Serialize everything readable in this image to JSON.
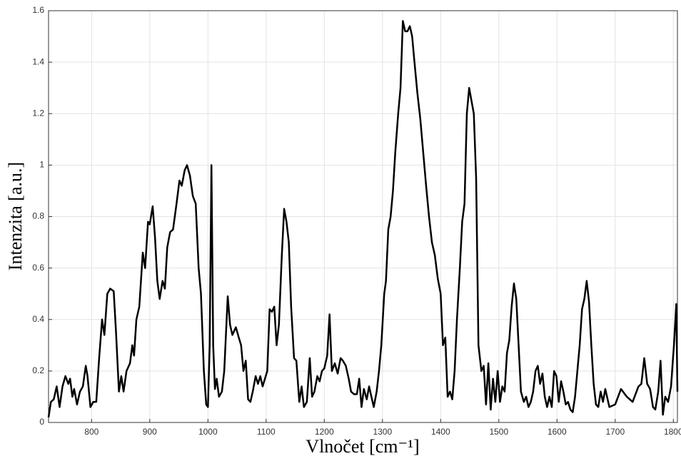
{
  "chart_data": {
    "type": "line",
    "xlabel": "Vlnočet [cm⁻¹]",
    "ylabel": "Intenzita [a.u.]",
    "color": "#000000",
    "grid": true,
    "xlim": [
      726,
      1807
    ],
    "ylim": [
      0,
      1.6
    ],
    "xticks": [
      800,
      900,
      1000,
      1100,
      1200,
      1300,
      1400,
      1500,
      1600,
      1700,
      1800
    ],
    "yticks": [
      0,
      0.2,
      0.4,
      0.6,
      0.8,
      1,
      1.2,
      1.4,
      1.6
    ],
    "x": [
      726,
      730,
      735,
      740,
      745,
      750,
      755,
      760,
      763,
      767,
      770,
      775,
      780,
      785,
      790,
      793,
      798,
      803,
      808,
      813,
      818,
      822,
      827,
      832,
      838,
      842,
      847,
      851,
      855,
      860,
      866,
      870,
      873,
      877,
      882,
      888,
      892,
      897,
      900,
      905,
      909,
      913,
      917,
      922,
      926,
      930,
      935,
      940,
      946,
      951,
      955,
      960,
      964,
      969,
      974,
      979,
      984,
      988,
      993,
      997,
      1000,
      1003,
      1006,
      1009,
      1012,
      1015,
      1019,
      1024,
      1028,
      1034,
      1038,
      1042,
      1048,
      1053,
      1057,
      1061,
      1065,
      1069,
      1073,
      1077,
      1082,
      1086,
      1090,
      1094,
      1098,
      1102,
      1106,
      1110,
      1114,
      1118,
      1122,
      1127,
      1131,
      1135,
      1139,
      1143,
      1148,
      1152,
      1157,
      1161,
      1165,
      1170,
      1175,
      1179,
      1183,
      1188,
      1192,
      1196,
      1200,
      1205,
      1209,
      1213,
      1218,
      1223,
      1228,
      1232,
      1237,
      1242,
      1246,
      1251,
      1256,
      1260,
      1264,
      1268,
      1273,
      1277,
      1281,
      1285,
      1290,
      1294,
      1298,
      1303,
      1306,
      1310,
      1314,
      1318,
      1322,
      1327,
      1331,
      1335,
      1339,
      1343,
      1347,
      1351,
      1355,
      1360,
      1365,
      1370,
      1375,
      1380,
      1385,
      1390,
      1395,
      1400,
      1404,
      1408,
      1412,
      1416,
      1420,
      1424,
      1428,
      1433,
      1437,
      1441,
      1445,
      1449,
      1453,
      1457,
      1461,
      1465,
      1470,
      1474,
      1478,
      1482,
      1486,
      1490,
      1494,
      1498,
      1502,
      1506,
      1510,
      1514,
      1518,
      1522,
      1526,
      1530,
      1534,
      1538,
      1543,
      1547,
      1551,
      1555,
      1559,
      1563,
      1567,
      1571,
      1575,
      1579,
      1583,
      1587,
      1591,
      1595,
      1599,
      1603,
      1607,
      1611,
      1615,
      1619,
      1623,
      1627,
      1631,
      1635,
      1639,
      1643,
      1647,
      1651,
      1655,
      1659,
      1663,
      1667,
      1671,
      1675,
      1679,
      1683,
      1690,
      1700,
      1710,
      1720,
      1730,
      1740,
      1745,
      1750,
      1755,
      1760,
      1765,
      1769,
      1774,
      1778,
      1782,
      1786,
      1791,
      1796,
      1801,
      1805,
      1807
    ],
    "values": [
      0.02,
      0.08,
      0.09,
      0.14,
      0.06,
      0.14,
      0.18,
      0.15,
      0.17,
      0.1,
      0.13,
      0.07,
      0.12,
      0.14,
      0.22,
      0.18,
      0.06,
      0.08,
      0.08,
      0.25,
      0.4,
      0.34,
      0.5,
      0.52,
      0.51,
      0.35,
      0.12,
      0.18,
      0.12,
      0.2,
      0.23,
      0.3,
      0.26,
      0.4,
      0.45,
      0.66,
      0.6,
      0.78,
      0.77,
      0.84,
      0.72,
      0.55,
      0.48,
      0.55,
      0.52,
      0.68,
      0.74,
      0.75,
      0.85,
      0.94,
      0.92,
      0.98,
      1.0,
      0.96,
      0.88,
      0.85,
      0.6,
      0.5,
      0.2,
      0.07,
      0.06,
      0.3,
      1.0,
      0.3,
      0.13,
      0.17,
      0.1,
      0.12,
      0.2,
      0.49,
      0.38,
      0.34,
      0.37,
      0.33,
      0.3,
      0.2,
      0.24,
      0.09,
      0.08,
      0.12,
      0.18,
      0.15,
      0.18,
      0.14,
      0.17,
      0.2,
      0.44,
      0.43,
      0.45,
      0.3,
      0.38,
      0.65,
      0.83,
      0.78,
      0.7,
      0.45,
      0.25,
      0.24,
      0.08,
      0.14,
      0.06,
      0.08,
      0.25,
      0.1,
      0.12,
      0.18,
      0.16,
      0.2,
      0.21,
      0.26,
      0.42,
      0.2,
      0.23,
      0.19,
      0.25,
      0.24,
      0.22,
      0.17,
      0.12,
      0.11,
      0.11,
      0.17,
      0.06,
      0.13,
      0.09,
      0.14,
      0.1,
      0.06,
      0.12,
      0.2,
      0.3,
      0.5,
      0.55,
      0.75,
      0.8,
      0.9,
      1.05,
      1.2,
      1.3,
      1.56,
      1.52,
      1.52,
      1.54,
      1.5,
      1.4,
      1.28,
      1.18,
      1.05,
      0.92,
      0.8,
      0.7,
      0.65,
      0.56,
      0.5,
      0.3,
      0.33,
      0.1,
      0.12,
      0.09,
      0.2,
      0.4,
      0.6,
      0.78,
      0.85,
      1.2,
      1.3,
      1.25,
      1.2,
      0.95,
      0.3,
      0.2,
      0.22,
      0.07,
      0.23,
      0.05,
      0.17,
      0.08,
      0.2,
      0.08,
      0.14,
      0.12,
      0.27,
      0.32,
      0.45,
      0.54,
      0.48,
      0.3,
      0.12,
      0.08,
      0.1,
      0.06,
      0.08,
      0.12,
      0.2,
      0.22,
      0.15,
      0.19,
      0.1,
      0.06,
      0.1,
      0.06,
      0.2,
      0.18,
      0.08,
      0.16,
      0.12,
      0.07,
      0.08,
      0.05,
      0.04,
      0.1,
      0.2,
      0.3,
      0.44,
      0.48,
      0.55,
      0.47,
      0.3,
      0.15,
      0.07,
      0.06,
      0.12,
      0.08,
      0.13,
      0.06,
      0.07,
      0.13,
      0.1,
      0.08,
      0.14,
      0.15,
      0.25,
      0.15,
      0.13,
      0.06,
      0.05,
      0.12,
      0.24,
      0.03,
      0.1,
      0.08,
      0.14,
      0.3,
      0.46,
      0.12
    ]
  }
}
